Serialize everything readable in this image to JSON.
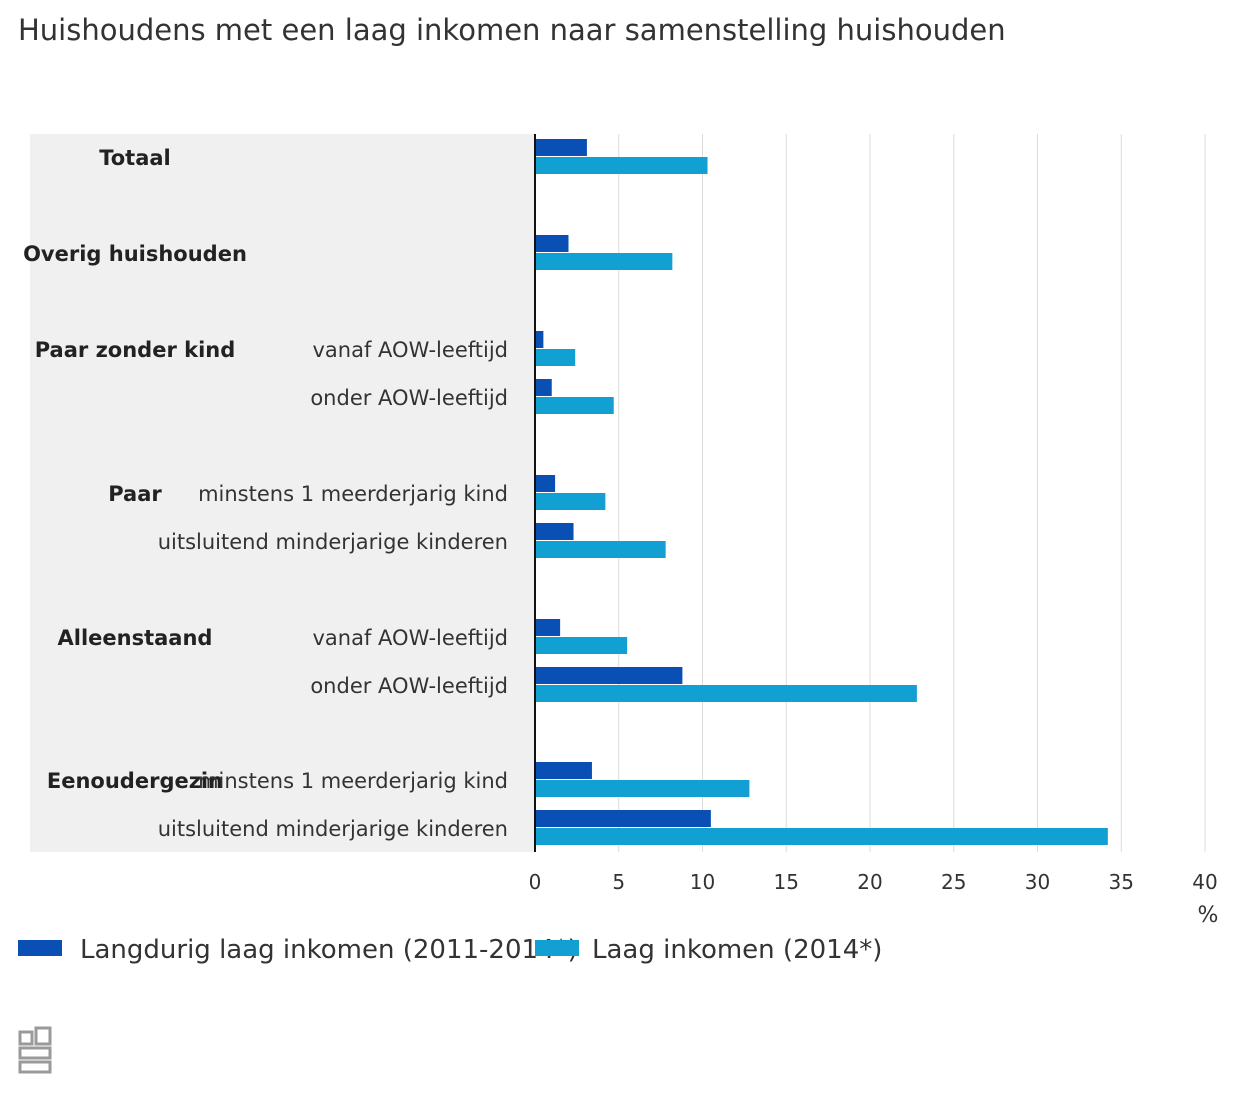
{
  "chart_data": {
    "type": "bar",
    "orientation": "horizontal",
    "title": "Huishoudens met een laag inkomen naar samenstelling huishouden",
    "unit_label": "%",
    "xlim": [
      0,
      40
    ],
    "x_ticks": [
      0,
      5,
      10,
      15,
      20,
      25,
      30,
      35,
      40
    ],
    "grid": true,
    "legend_position": "bottom-left",
    "categories": [
      {
        "group": "Totaal",
        "label": ""
      },
      {
        "group": "Overig huishouden",
        "label": ""
      },
      {
        "group": "Paar zonder kind",
        "label": "vanaf AOW-leeftijd"
      },
      {
        "group": "",
        "label": "onder AOW-leeftijd"
      },
      {
        "group": "Paar",
        "label": "minstens 1 meerderjarig kind"
      },
      {
        "group": "",
        "label": "uitsluitend minderjarige kinderen"
      },
      {
        "group": "Alleenstaand",
        "label": "vanaf AOW-leeftijd"
      },
      {
        "group": "",
        "label": "onder AOW-leeftijd"
      },
      {
        "group": "Eenoudergezin",
        "label": "minstens 1 meerderjarig kind"
      },
      {
        "group": "",
        "label": "uitsluitend minderjarige kinderen"
      }
    ],
    "series": [
      {
        "name": "Langdurig laag inkomen (2011-2014*)",
        "color": "#0a50b4",
        "values": [
          3.1,
          2.0,
          0.5,
          1.0,
          1.2,
          2.3,
          1.5,
          8.8,
          3.4,
          10.5
        ]
      },
      {
        "name": "Laag inkomen (2014*)",
        "color": "#12a0d2",
        "values": [
          10.3,
          8.2,
          2.4,
          4.7,
          4.2,
          7.8,
          5.5,
          22.8,
          12.8,
          34.2
        ]
      }
    ]
  }
}
